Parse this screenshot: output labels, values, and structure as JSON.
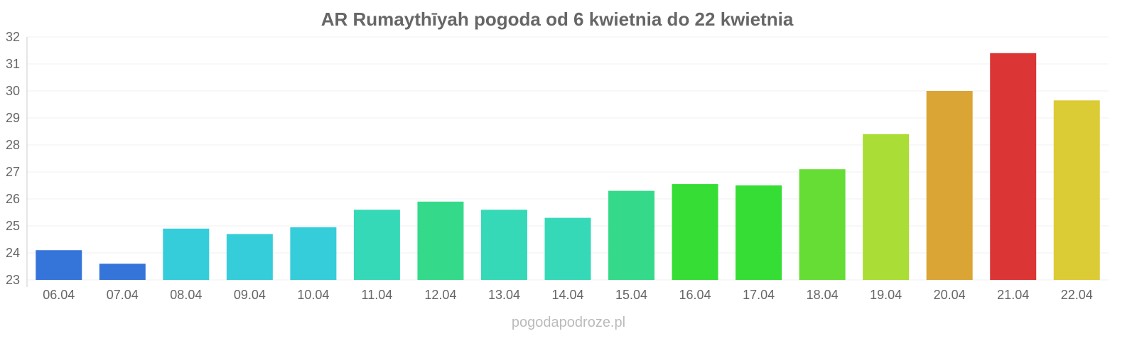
{
  "chart_data": {
    "type": "bar",
    "title": "AR Rumaythīyah pogoda od 6 kwietnia do 22 kwietnia",
    "categories": [
      "06.04",
      "07.04",
      "08.04",
      "09.04",
      "10.04",
      "11.04",
      "12.04",
      "13.04",
      "14.04",
      "15.04",
      "16.04",
      "17.04",
      "18.04",
      "19.04",
      "20.04",
      "21.04",
      "22.04"
    ],
    "values": [
      24.1,
      23.6,
      24.9,
      24.7,
      24.95,
      25.6,
      25.9,
      25.6,
      25.3,
      26.3,
      26.55,
      26.5,
      27.1,
      28.4,
      30.0,
      31.4,
      29.65
    ],
    "colors": [
      "#3575d9",
      "#3575d9",
      "#35cdd9",
      "#35cdd9",
      "#35cdd9",
      "#35d9b8",
      "#35d98a",
      "#35d9b8",
      "#35d9b8",
      "#35d98a",
      "#35dd35",
      "#35dd35",
      "#65dd35",
      "#aadd35",
      "#dba535",
      "#db3535",
      "#dbcb35"
    ],
    "ylim": [
      23,
      32
    ],
    "yticks": [
      23,
      24,
      25,
      26,
      27,
      28,
      29,
      30,
      31,
      32
    ],
    "xlabel": "",
    "ylabel": "",
    "grid": true
  },
  "watermark": "pogodapodroze.pl"
}
